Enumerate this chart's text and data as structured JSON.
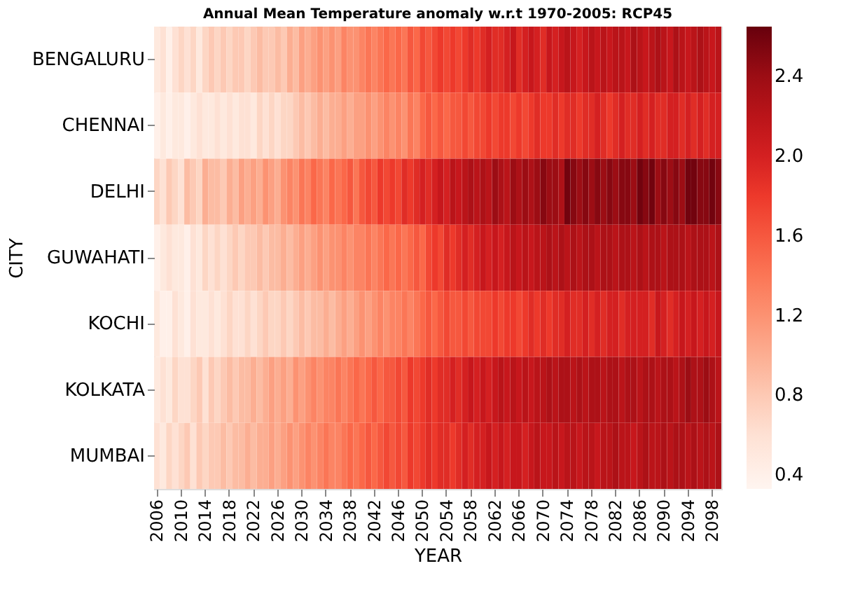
{
  "chart_data": {
    "type": "heatmap",
    "title": "Annual Mean Temperature anomaly w.r.t 1970-2005: RCP45",
    "xlabel": "YEAR",
    "ylabel": "CITY",
    "categories": [
      "2006",
      null,
      null,
      null,
      "2010",
      null,
      null,
      null,
      "2014",
      null,
      null,
      null,
      "2018",
      null,
      null,
      null,
      "2022",
      null,
      null,
      null,
      "2026",
      null,
      null,
      null,
      "2030",
      null,
      null,
      null,
      "2034",
      null,
      null,
      null,
      "2038",
      null,
      null,
      null,
      "2042",
      null,
      null,
      null,
      "2046",
      null,
      null,
      null,
      "2050",
      null,
      null,
      null,
      "2054",
      null,
      null,
      null,
      "2058",
      null,
      null,
      null,
      "2062",
      null,
      null,
      null,
      "2066",
      null,
      null,
      null,
      "2070",
      null,
      null,
      null,
      "2074",
      null,
      null,
      null,
      "2078",
      null,
      null,
      null,
      "2082",
      null,
      null,
      null,
      "2086",
      null,
      null,
      null,
      "2090",
      null,
      null,
      null,
      "2094",
      null,
      null,
      null,
      "2098",
      null
    ],
    "y_categories": [
      "BENGALURU",
      "CHENNAI",
      "DELHI",
      "GUWAHATI",
      "KOCHI",
      "KOLKATA",
      "MUMBAI"
    ],
    "cells": [
      [
        0.5,
        0.6,
        0.4,
        0.6,
        0.7,
        0.6,
        0.7,
        0.5,
        0.7,
        0.8,
        0.7,
        0.8,
        0.7,
        0.8,
        0.8,
        0.7,
        0.8,
        0.9,
        0.8,
        0.8,
        0.9,
        0.8,
        1.0,
        0.9,
        1.1,
        1.0,
        1.1,
        1.2,
        1.1,
        1.2,
        1.1,
        1.3,
        1.2,
        1.2,
        1.3,
        1.4,
        1.3,
        1.4,
        1.5,
        1.4,
        1.5,
        1.4,
        1.6,
        1.5,
        1.7,
        1.6,
        1.7,
        1.8,
        1.7,
        1.8,
        1.7,
        1.8,
        1.9,
        1.8,
        1.9,
        2.0,
        1.9,
        1.9,
        2.0,
        2.1,
        1.9,
        2.0,
        2.1,
        2.0,
        1.9,
        2.1,
        2.0,
        2.1,
        2.2,
        2.1,
        2.0,
        2.1,
        2.2,
        2.1,
        2.2,
        2.1,
        2.2,
        2.2,
        2.1,
        2.3,
        2.2,
        2.1,
        2.2,
        2.3,
        2.2,
        2.1,
        2.3,
        2.2,
        2.1,
        2.2,
        2.3,
        2.2,
        2.1,
        2.2
      ],
      [
        0.4,
        0.5,
        0.4,
        0.5,
        0.5,
        0.4,
        0.5,
        0.6,
        0.5,
        0.5,
        0.6,
        0.5,
        0.6,
        0.5,
        0.6,
        0.6,
        0.5,
        0.7,
        0.6,
        0.7,
        0.6,
        0.7,
        0.7,
        0.8,
        0.9,
        0.8,
        0.9,
        1.0,
        0.9,
        1.0,
        1.0,
        1.1,
        1.0,
        1.1,
        1.1,
        1.2,
        1.1,
        1.2,
        1.3,
        1.2,
        1.3,
        1.2,
        1.4,
        1.3,
        1.5,
        1.6,
        1.5,
        1.6,
        1.5,
        1.6,
        1.6,
        1.7,
        1.6,
        1.7,
        1.7,
        1.8,
        1.7,
        1.8,
        1.8,
        1.7,
        1.8,
        1.7,
        1.8,
        1.9,
        1.8,
        1.8,
        1.9,
        1.8,
        1.9,
        1.9,
        1.8,
        1.9,
        1.9,
        2.0,
        1.9,
        1.8,
        1.9,
        2.0,
        1.9,
        1.9,
        2.0,
        1.9,
        2.0,
        1.9,
        1.9,
        2.0,
        2.0,
        1.9,
        2.0,
        1.9,
        2.0,
        1.9,
        2.0,
        2.0
      ],
      [
        0.7,
        0.6,
        0.8,
        0.7,
        0.6,
        0.9,
        0.8,
        0.7,
        1.0,
        0.9,
        0.9,
        0.8,
        1.0,
        0.9,
        1.1,
        1.0,
        1.1,
        1.0,
        1.2,
        1.1,
        1.0,
        1.2,
        1.3,
        1.2,
        1.4,
        1.3,
        1.5,
        1.4,
        1.3,
        1.5,
        1.4,
        1.5,
        1.6,
        1.4,
        1.6,
        1.7,
        1.6,
        1.8,
        1.7,
        1.8,
        1.7,
        1.9,
        1.8,
        1.9,
        2.0,
        1.9,
        2.0,
        2.1,
        2.0,
        2.2,
        2.1,
        2.2,
        2.3,
        2.2,
        2.3,
        2.2,
        2.4,
        2.3,
        2.2,
        2.4,
        2.3,
        2.4,
        2.3,
        2.4,
        2.5,
        2.4,
        2.4,
        2.3,
        2.6,
        2.5,
        2.4,
        2.5,
        2.4,
        2.5,
        2.4,
        2.5,
        2.4,
        2.5,
        2.5,
        2.4,
        2.6,
        2.5,
        2.6,
        2.4,
        2.5,
        2.4,
        2.5,
        2.4,
        2.6,
        2.6,
        2.5,
        2.5,
        2.6,
        2.5
      ],
      [
        0.4,
        0.5,
        0.6,
        0.5,
        0.5,
        0.4,
        0.6,
        0.5,
        0.7,
        0.6,
        0.7,
        0.6,
        0.7,
        0.8,
        0.7,
        0.8,
        0.8,
        0.9,
        0.8,
        0.9,
        0.9,
        1.0,
        0.9,
        1.0,
        1.1,
        1.0,
        1.1,
        1.2,
        1.1,
        1.2,
        1.2,
        1.3,
        1.2,
        1.3,
        1.3,
        1.4,
        1.3,
        1.4,
        1.5,
        1.4,
        1.5,
        1.4,
        1.5,
        1.6,
        1.5,
        1.7,
        1.8,
        1.7,
        1.9,
        1.8,
        1.9,
        2.0,
        1.9,
        2.0,
        2.1,
        2.0,
        2.1,
        2.0,
        2.1,
        2.2,
        2.1,
        2.2,
        2.1,
        2.2,
        2.2,
        2.3,
        2.2,
        2.3,
        2.2,
        2.3,
        2.2,
        2.3,
        2.3,
        2.2,
        2.3,
        2.3,
        2.2,
        2.3,
        2.3,
        2.2,
        2.3,
        2.2,
        2.3,
        2.3,
        2.2,
        2.3,
        2.3,
        2.3,
        2.2,
        2.3,
        2.3,
        2.3,
        2.2,
        2.3
      ],
      [
        0.5,
        0.4,
        0.4,
        0.6,
        0.5,
        0.4,
        0.6,
        0.5,
        0.5,
        0.6,
        0.5,
        0.6,
        0.7,
        0.6,
        0.6,
        0.7,
        0.6,
        0.7,
        0.8,
        0.7,
        0.7,
        0.8,
        0.7,
        0.8,
        0.9,
        0.8,
        0.9,
        0.9,
        1.0,
        0.9,
        1.0,
        1.1,
        1.0,
        1.1,
        1.2,
        1.1,
        1.2,
        1.3,
        1.2,
        1.3,
        1.3,
        1.4,
        1.3,
        1.4,
        1.5,
        1.6,
        1.5,
        1.6,
        1.7,
        1.6,
        1.6,
        1.7,
        1.6,
        1.7,
        1.7,
        1.7,
        1.8,
        1.7,
        1.8,
        1.8,
        1.7,
        1.8,
        1.9,
        1.8,
        1.9,
        1.8,
        1.9,
        1.9,
        2.0,
        1.9,
        1.9,
        2.0,
        1.9,
        2.0,
        1.9,
        2.0,
        2.0,
        1.9,
        2.0,
        2.0,
        2.0,
        2.0,
        1.9,
        2.1,
        2.0,
        1.9,
        2.0,
        2.1,
        2.0,
        2.1,
        2.0,
        2.1,
        2.0,
        2.1
      ],
      [
        0.5,
        0.6,
        0.5,
        0.7,
        0.6,
        0.6,
        0.7,
        0.8,
        0.6,
        0.8,
        0.7,
        0.8,
        0.9,
        0.8,
        0.9,
        0.9,
        1.0,
        0.9,
        1.0,
        1.1,
        1.0,
        1.1,
        1.0,
        1.2,
        1.1,
        1.2,
        1.3,
        1.2,
        1.3,
        1.3,
        1.4,
        1.3,
        1.4,
        1.5,
        1.4,
        1.5,
        1.6,
        1.5,
        1.6,
        1.6,
        1.7,
        1.6,
        1.8,
        1.7,
        1.8,
        1.9,
        1.8,
        1.9,
        1.9,
        2.0,
        1.9,
        2.0,
        2.1,
        2.0,
        2.1,
        2.0,
        2.1,
        2.2,
        2.1,
        2.2,
        2.1,
        2.2,
        2.1,
        2.2,
        2.2,
        2.3,
        2.2,
        2.3,
        2.3,
        2.2,
        2.3,
        2.2,
        2.3,
        2.3,
        2.2,
        2.3,
        2.3,
        2.2,
        2.3,
        2.3,
        2.2,
        2.3,
        2.3,
        2.2,
        2.3,
        2.3,
        2.2,
        2.3,
        2.4,
        2.3,
        2.3,
        2.4,
        2.3,
        2.2
      ],
      [
        0.6,
        0.5,
        0.7,
        0.6,
        0.7,
        0.8,
        0.6,
        0.8,
        0.7,
        0.8,
        0.8,
        0.9,
        0.8,
        0.9,
        0.9,
        1.0,
        0.9,
        1.0,
        1.0,
        1.1,
        1.0,
        1.1,
        1.2,
        1.1,
        1.2,
        1.3,
        1.2,
        1.3,
        1.4,
        1.3,
        1.3,
        1.4,
        1.5,
        1.4,
        1.5,
        1.6,
        1.5,
        1.6,
        1.7,
        1.6,
        1.7,
        1.6,
        1.8,
        1.7,
        1.8,
        1.9,
        1.8,
        1.9,
        1.9,
        1.8,
        1.9,
        2.0,
        1.9,
        2.0,
        2.0,
        2.1,
        2.0,
        2.1,
        2.0,
        2.1,
        2.1,
        2.0,
        2.1,
        2.2,
        2.1,
        2.1,
        2.2,
        2.1,
        2.2,
        2.2,
        2.1,
        2.2,
        2.2,
        2.1,
        2.2,
        2.2,
        2.3,
        2.2,
        2.2,
        2.1,
        2.2,
        2.3,
        2.2,
        2.2,
        2.3,
        2.2,
        2.3,
        2.3,
        2.2,
        2.3,
        2.2,
        2.3,
        2.2,
        2.3
      ]
    ],
    "clim": [
      0.33,
      2.65
    ],
    "cticks": [
      0.4,
      0.8,
      1.2,
      1.6,
      {
        "value": 2,
        "label": "2.0"
      },
      2.4
    ]
  }
}
